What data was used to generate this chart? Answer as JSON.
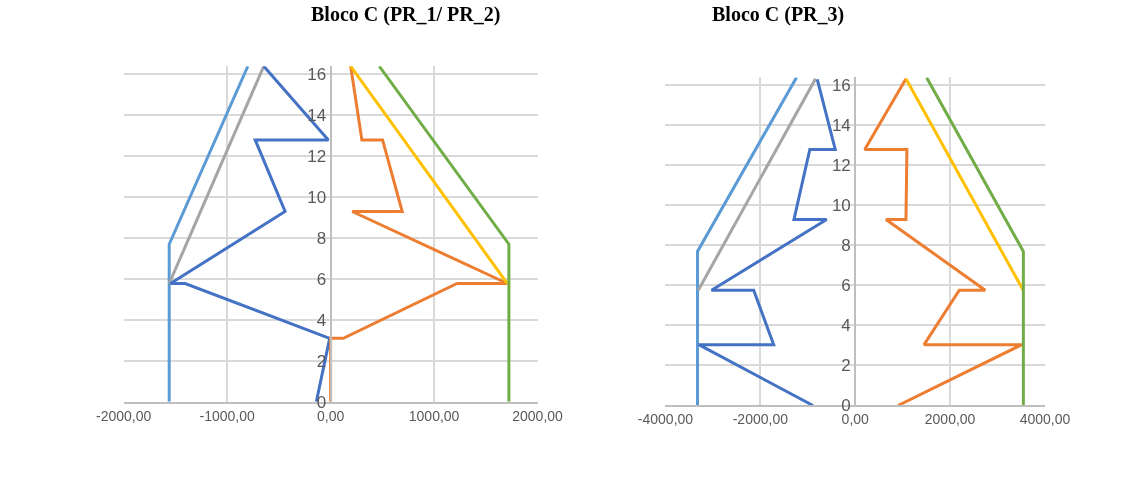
{
  "chart_data": [
    {
      "type": "line",
      "title": "Bloco C (PR_1/ PR_2)",
      "xlim": [
        -2000,
        2000
      ],
      "ylim": [
        0,
        16.4
      ],
      "grid": true,
      "xticks": [
        {
          "value": -2000,
          "label": "-2000,00"
        },
        {
          "value": -1000,
          "label": "-1000,00"
        },
        {
          "value": 0,
          "label": "0,00"
        },
        {
          "value": 1000,
          "label": "1000,00"
        },
        {
          "value": 2000,
          "label": "2000,00"
        }
      ],
      "yticks": [
        0,
        2,
        4,
        6,
        8,
        10,
        12,
        14,
        16
      ],
      "series": [
        {
          "color": "#5b9bd5",
          "x": [
            -1560,
            -1560,
            -800
          ],
          "values": [
            0,
            7.7,
            16.4
          ]
        },
        {
          "color": "#a5a5a5",
          "x": [
            -1560,
            -646
          ],
          "values": [
            5.78,
            16.4
          ]
        },
        {
          "color": "#4472c4",
          "x": [
            -138,
            -9,
            -1406,
            -1548,
            -440,
            -729,
            -22,
            -646
          ],
          "values": [
            0,
            3.1,
            5.78,
            5.78,
            9.3,
            12.8,
            12.8,
            16.4
          ]
        },
        {
          "color": "#ed7d31",
          "x": [
            0,
            0,
            123,
            1222,
            1708,
            209,
            692,
            502,
            302,
            194
          ],
          "values": [
            0,
            3.1,
            3.1,
            5.78,
            5.78,
            9.3,
            9.3,
            12.8,
            12.8,
            16.4
          ]
        },
        {
          "color": "#ffc000",
          "x": [
            1708,
            194
          ],
          "values": [
            5.78,
            16.4
          ]
        },
        {
          "color": "#70ad47",
          "x": [
            1723,
            1723,
            470
          ],
          "values": [
            0,
            7.7,
            16.4
          ]
        }
      ]
    },
    {
      "type": "line",
      "title": "Bloco C (PR_3)",
      "xlim": [
        -4000,
        4000
      ],
      "ylim": [
        0,
        16.4
      ],
      "grid": true,
      "xticks": [
        {
          "value": -4000,
          "label": "-4000,00"
        },
        {
          "value": -2000,
          "label": "-2000,00"
        },
        {
          "value": 0,
          "label": "0,00"
        },
        {
          "value": 2000,
          "label": "2000,00"
        },
        {
          "value": 4000,
          "label": "4000,00"
        }
      ],
      "yticks": [
        0,
        2,
        4,
        6,
        8,
        10,
        12,
        14,
        16
      ],
      "series": [
        {
          "color": "#5b9bd5",
          "x": [
            -3325,
            -3325,
            -1237
          ],
          "values": [
            0,
            7.7,
            16.4
          ]
        },
        {
          "color": "#a5a5a5",
          "x": [
            -3311,
            -836
          ],
          "values": [
            5.75,
            16.33
          ]
        },
        {
          "color": "#4472c4",
          "x": [
            -890,
            -3298,
            -1719,
            -2140,
            -3030,
            -602,
            -1291,
            -957,
            -421,
            -800
          ],
          "values": [
            0,
            3.04,
            3.04,
            5.76,
            5.76,
            9.3,
            9.3,
            12.8,
            12.8,
            16.3
          ]
        },
        {
          "color": "#ed7d31",
          "x": [
            903,
            3512,
            1452,
            2194,
            2742,
            649,
            1070,
            1090,
            201,
            1070
          ],
          "values": [
            0,
            3.04,
            3.04,
            5.76,
            5.76,
            9.3,
            9.3,
            12.8,
            12.8,
            16.33
          ]
        },
        {
          "color": "#ffc000",
          "x": [
            3545,
            1070
          ],
          "values": [
            5.75,
            16.33
          ]
        },
        {
          "color": "#70ad47",
          "x": [
            3545,
            3545,
            1505
          ],
          "values": [
            0,
            7.7,
            16.4
          ]
        }
      ]
    }
  ]
}
